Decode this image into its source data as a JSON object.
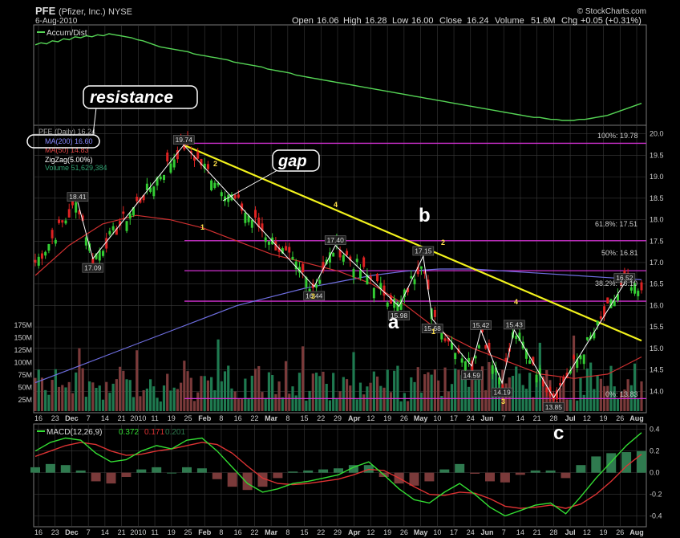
{
  "header": {
    "symbol": "PFE",
    "company": "(Pfizer, Inc.)",
    "exchange": "NYSE",
    "date": "6-Aug-2010",
    "watermark": "© StockCharts.com",
    "open_label": "Open",
    "open": "16.06",
    "high_label": "High",
    "high": "16.28",
    "low_label": "Low",
    "low": "16.00",
    "close_label": "Close",
    "close": "16.24",
    "volume_label": "Volume",
    "volume": "51.6M",
    "chg_label": "Chg",
    "chg": "+0.05 (+0.31%)"
  },
  "colors": {
    "background": "#000000",
    "grid": "#3a3a3a",
    "accum": "#55d455",
    "ma200": "#6e6ee0",
    "ma50": "#d03030",
    "zigzag": "#ffffff",
    "trendline": "#f2f21c",
    "fib": "#d030d0",
    "up_candle": "#33cc33",
    "down_candle": "#dd2222",
    "volume_up": "#1f7a50",
    "volume_down": "#7a3a3a",
    "macd": "#33dd33",
    "signal": "#dd3333",
    "histogram": "#2f7a4f"
  },
  "accum_panel": {
    "label": "Accum/Dist"
  },
  "legend": {
    "price": "PFE (Daily) 16.24",
    "ma200": "MA(200) 16.60",
    "ma50": "MA(50) 14.83",
    "zigzag": "ZigZag(5.00%)",
    "volume": "Volume 51,629,384"
  },
  "annotations": {
    "resistance": "resistance",
    "gap": "gap",
    "wave_a": "a",
    "wave_b": "b",
    "wave_c": "c",
    "count_2a": "2",
    "count_1a": "1",
    "count_3a": "3",
    "count_4a": "4",
    "count_2b": "2",
    "count_1b": "1",
    "count_4b": "4",
    "count_3b": "3"
  },
  "fib_labels": {
    "f100": "100%: 19.78",
    "f618": "61.8%: 17.51",
    "f50": "50%: 16.81",
    "f382": "38.2%: 16.10",
    "f0": "0%: 13.83"
  },
  "macd_label": {
    "name": "MACD(12,26,9)",
    "macd": "0.372",
    "signal": "0.171",
    "hist": "0.201"
  },
  "chart_data": [
    {
      "type": "line",
      "title": "Accum/Dist",
      "series": [
        {
          "name": "Accum/Dist",
          "values": [
            80,
            82,
            81,
            84,
            83,
            86,
            85,
            88,
            87,
            89,
            88,
            90,
            89,
            91,
            90,
            89,
            88,
            87,
            85,
            84,
            82,
            80,
            78,
            77,
            76,
            75,
            74,
            73,
            71,
            70,
            69,
            68,
            67,
            66,
            65,
            63,
            62,
            61,
            60,
            59,
            58,
            56,
            55,
            54,
            53,
            52,
            50,
            49,
            48,
            47,
            46,
            45,
            44,
            43,
            42,
            41,
            40,
            39,
            38,
            37,
            36,
            35,
            34,
            33,
            32,
            31,
            30,
            29,
            28,
            27,
            26,
            25,
            24,
            23,
            22,
            21,
            20,
            19,
            18,
            17,
            16,
            15,
            14,
            13,
            12,
            11,
            10,
            9,
            8,
            8,
            7,
            6,
            6,
            5,
            5,
            5,
            6,
            6,
            7,
            8,
            9,
            10,
            12,
            14,
            16,
            18,
            20,
            22
          ]
        }
      ]
    },
    {
      "type": "line",
      "title": "PFE (Daily) 16.24",
      "ylim": [
        13.5,
        20.2
      ],
      "y_ticks": [
        "20.0",
        "19.5",
        "19.0",
        "18.5",
        "18.0",
        "17.5",
        "17.0",
        "16.5",
        "16.0",
        "15.5",
        "15.0",
        "14.5",
        "14.0"
      ],
      "volume_ticks": [
        "175M",
        "150M",
        "125M",
        "100M",
        "75M",
        "50M",
        "25M"
      ],
      "x_ticks": [
        "16",
        "23",
        "Dec",
        "7",
        "14",
        "21",
        "2010",
        "11",
        "19",
        "25",
        "Feb",
        "8",
        "16",
        "22",
        "Mar",
        "8",
        "15",
        "22",
        "29",
        "Apr",
        "12",
        "19",
        "26",
        "May",
        "10",
        "17",
        "24",
        "Jun",
        "7",
        "14",
        "21",
        "28",
        "Jul",
        "12",
        "19",
        "26",
        "Aug"
      ],
      "zigzag": [
        {
          "label": "18.41",
          "value": 18.41
        },
        {
          "label": "17.09",
          "value": 17.09
        },
        {
          "label": "19.74",
          "value": 19.74
        },
        {
          "label": "16.44",
          "value": 16.44
        },
        {
          "label": "17.40",
          "value": 17.4
        },
        {
          "label": "15.98",
          "value": 15.98
        },
        {
          "label": "17.15",
          "value": 17.15
        },
        {
          "label": "15.68",
          "value": 15.68
        },
        {
          "label": "14.59",
          "value": 14.59
        },
        {
          "label": "15.42",
          "value": 15.42
        },
        {
          "label": "14.19",
          "value": 14.19
        },
        {
          "label": "15.43",
          "value": 15.43
        },
        {
          "label": "13.85",
          "value": 13.85
        },
        {
          "label": "16.52",
          "value": 16.52
        }
      ],
      "fib_levels": [
        19.78,
        17.51,
        16.81,
        16.1,
        13.83
      ],
      "ma200": [
        14.2,
        14.5,
        14.8,
        15.1,
        15.4,
        15.7,
        16.0,
        16.2,
        16.4,
        16.55,
        16.7,
        16.8,
        16.85,
        16.85,
        16.8,
        16.75,
        16.7,
        16.65,
        16.6
      ],
      "ma50": [
        16.7,
        17.4,
        17.9,
        18.1,
        18.0,
        17.8,
        17.5,
        17.2,
        17.0,
        16.8,
        16.5,
        16.0,
        15.4,
        15.0,
        14.7,
        14.4,
        14.3,
        14.4,
        14.8
      ]
    },
    {
      "type": "line",
      "title": "MACD(12,26,9)",
      "ylim": [
        -0.5,
        0.45
      ],
      "y_ticks": [
        "0.4",
        "0.2",
        "0.0",
        "-0.2",
        "-0.4"
      ],
      "series": [
        {
          "name": "MACD",
          "values": [
            0.2,
            0.28,
            0.32,
            0.3,
            0.18,
            0.1,
            0.12,
            0.2,
            0.25,
            0.22,
            0.3,
            0.32,
            0.2,
            0.05,
            -0.1,
            -0.18,
            -0.15,
            -0.1,
            -0.08,
            -0.05,
            -0.02,
            0.05,
            0.1,
            -0.02,
            -0.15,
            -0.25,
            -0.28,
            -0.18,
            -0.1,
            -0.2,
            -0.32,
            -0.4,
            -0.35,
            -0.3,
            -0.28,
            -0.38,
            -0.22,
            -0.05,
            0.1,
            0.25,
            0.37
          ]
        },
        {
          "name": "Signal",
          "values": [
            0.15,
            0.2,
            0.25,
            0.28,
            0.26,
            0.2,
            0.16,
            0.17,
            0.2,
            0.22,
            0.25,
            0.28,
            0.26,
            0.18,
            0.06,
            -0.05,
            -0.1,
            -0.11,
            -0.1,
            -0.08,
            -0.06,
            -0.02,
            0.03,
            0.02,
            -0.05,
            -0.13,
            -0.2,
            -0.21,
            -0.18,
            -0.19,
            -0.24,
            -0.31,
            -0.33,
            -0.32,
            -0.3,
            -0.33,
            -0.29,
            -0.2,
            -0.08,
            0.06,
            0.17
          ]
        }
      ]
    }
  ]
}
